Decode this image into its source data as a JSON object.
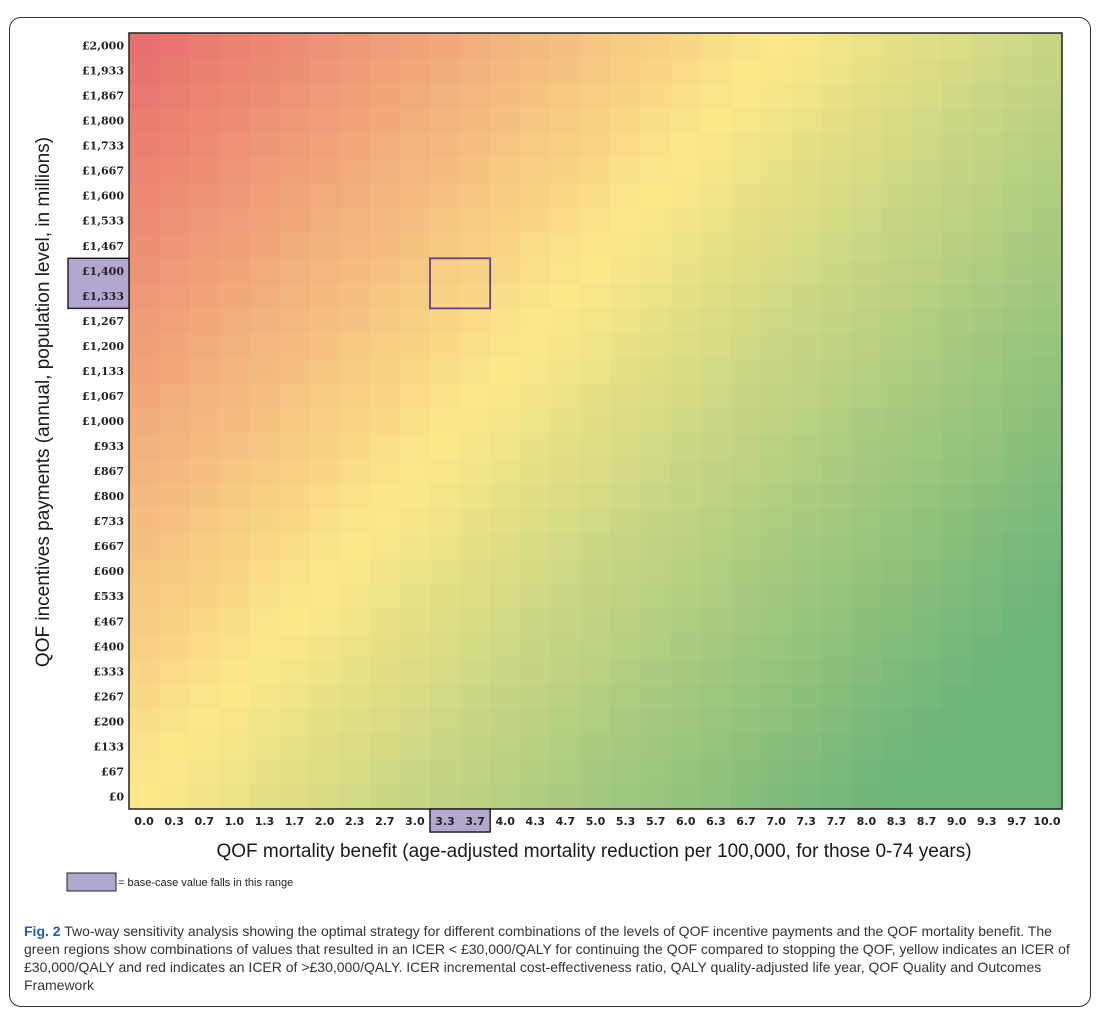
{
  "chart_data": {
    "type": "heatmap",
    "title": "",
    "ylabel": "QOF incentives payments (annual, population level, in millions)",
    "xlabel": "QOF mortality benefit (age-adjusted mortality reduction per 100,000, for those 0-74 years)",
    "y_ticks": [
      "£2,000",
      "£1,933",
      "£1,867",
      "£1,800",
      "£1,733",
      "£1,667",
      "£1,600",
      "£1,533",
      "£1,467",
      "£1,400",
      "£1,333",
      "£1,267",
      "£1,200",
      "£1,133",
      "£1,067",
      "£1,000",
      "£933",
      "£867",
      "£800",
      "£733",
      "£667",
      "£600",
      "£533",
      "£467",
      "£400",
      "£333",
      "£267",
      "£200",
      "£133",
      "£67",
      "£0"
    ],
    "x_ticks": [
      "0.0",
      "0.3",
      "0.7",
      "1.0",
      "1.3",
      "1.7",
      "2.0",
      "2.3",
      "2.7",
      "3.0",
      "3.3",
      "3.7",
      "4.0",
      "4.3",
      "4.7",
      "5.0",
      "5.3",
      "5.7",
      "6.0",
      "6.3",
      "6.7",
      "7.0",
      "7.3",
      "7.7",
      "8.0",
      "8.3",
      "8.7",
      "9.0",
      "9.3",
      "9.7",
      "10.0"
    ],
    "highlight_y": [
      "£1,400",
      "£1,333"
    ],
    "highlight_x": [
      "3.3",
      "3.7"
    ],
    "colors": {
      "red": "#e8706e",
      "yellow": "#fce98a",
      "green": "#6db579",
      "highlight": "#b3a7cf",
      "highlight_border": "#6a3d8f"
    },
    "legend": {
      "text": "= base-case value falls in this range"
    }
  },
  "caption": {
    "fig_label": "Fig. 2",
    "text": " Two-way sensitivity analysis showing the optimal strategy for different combinations of the levels of QOF incentive payments and the QOF mortality benefit. The green regions show combinations of values that resulted in an ICER < £30,000/QALY for continuing the QOF compared to stopping the QOF, yellow indicates an ICER of £30,000/QALY and red indicates an ICER of >£30,000/QALY. ICER incremental cost-effectiveness ratio, QALY quality-adjusted life year, QOF Quality and Outcomes Framework"
  }
}
